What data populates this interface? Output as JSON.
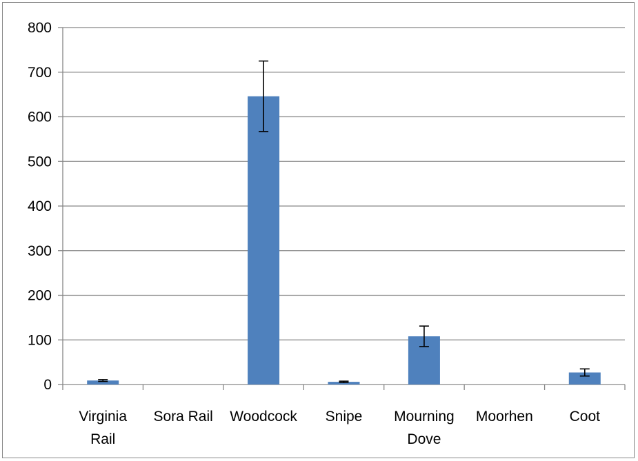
{
  "chart_data": {
    "type": "bar",
    "title": "",
    "xlabel": "",
    "ylabel": "",
    "categories": [
      [
        "Virginia",
        "Rail"
      ],
      [
        "Sora Rail"
      ],
      [
        "Woodcock"
      ],
      [
        "Snipe"
      ],
      [
        "Mourning",
        "Dove"
      ],
      [
        "Moorhen"
      ],
      [
        "Coot"
      ]
    ],
    "values": [
      9,
      0,
      646,
      6,
      108,
      0,
      27
    ],
    "error": [
      2,
      0,
      79,
      1.5,
      23,
      0,
      8
    ],
    "ylim": [
      0,
      800
    ],
    "yticks": [
      0,
      100,
      200,
      300,
      400,
      500,
      600,
      700,
      800
    ],
    "ytick_labels": [
      "0",
      "100",
      "200",
      "300",
      "400",
      "500",
      "600",
      "700",
      "800"
    ],
    "grid": true,
    "legend": "none",
    "bar_color": "#4f81bd"
  }
}
